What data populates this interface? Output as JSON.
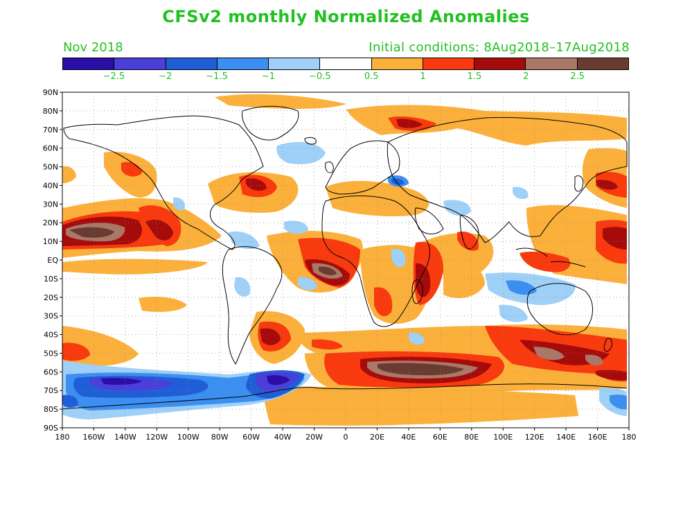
{
  "title": "CFSv2 monthly Normalized Anomalies",
  "month": "Nov 2018",
  "initial_conditions": "Initial conditions: 8Aug2018–17Aug2018",
  "colorbar": {
    "colors": [
      "#2a0ea6",
      "#4a3fd8",
      "#1f5ed6",
      "#3c8ff0",
      "#9fd0f8",
      "#ffffff",
      "#fbb03b",
      "#f83a0e",
      "#a50b0b",
      "#a97866",
      "#6a3b30"
    ],
    "labels": [
      "−2.5",
      "−2",
      "−1.5",
      "−1",
      "−0.5",
      "0.5",
      "1",
      "1.5",
      "2",
      "2.5"
    ]
  },
  "map": {
    "lat_labels": [
      "90N",
      "80N",
      "70N",
      "60N",
      "50N",
      "40N",
      "30N",
      "20N",
      "10N",
      "EQ",
      "10S",
      "20S",
      "30S",
      "40S",
      "50S",
      "60S",
      "70S",
      "80S",
      "90S"
    ],
    "lon_labels": [
      "180",
      "160W",
      "140W",
      "120W",
      "100W",
      "80W",
      "60W",
      "40W",
      "20W",
      "0",
      "20E",
      "40E",
      "60E",
      "80E",
      "100E",
      "120E",
      "140E",
      "160E",
      "180"
    ]
  }
}
